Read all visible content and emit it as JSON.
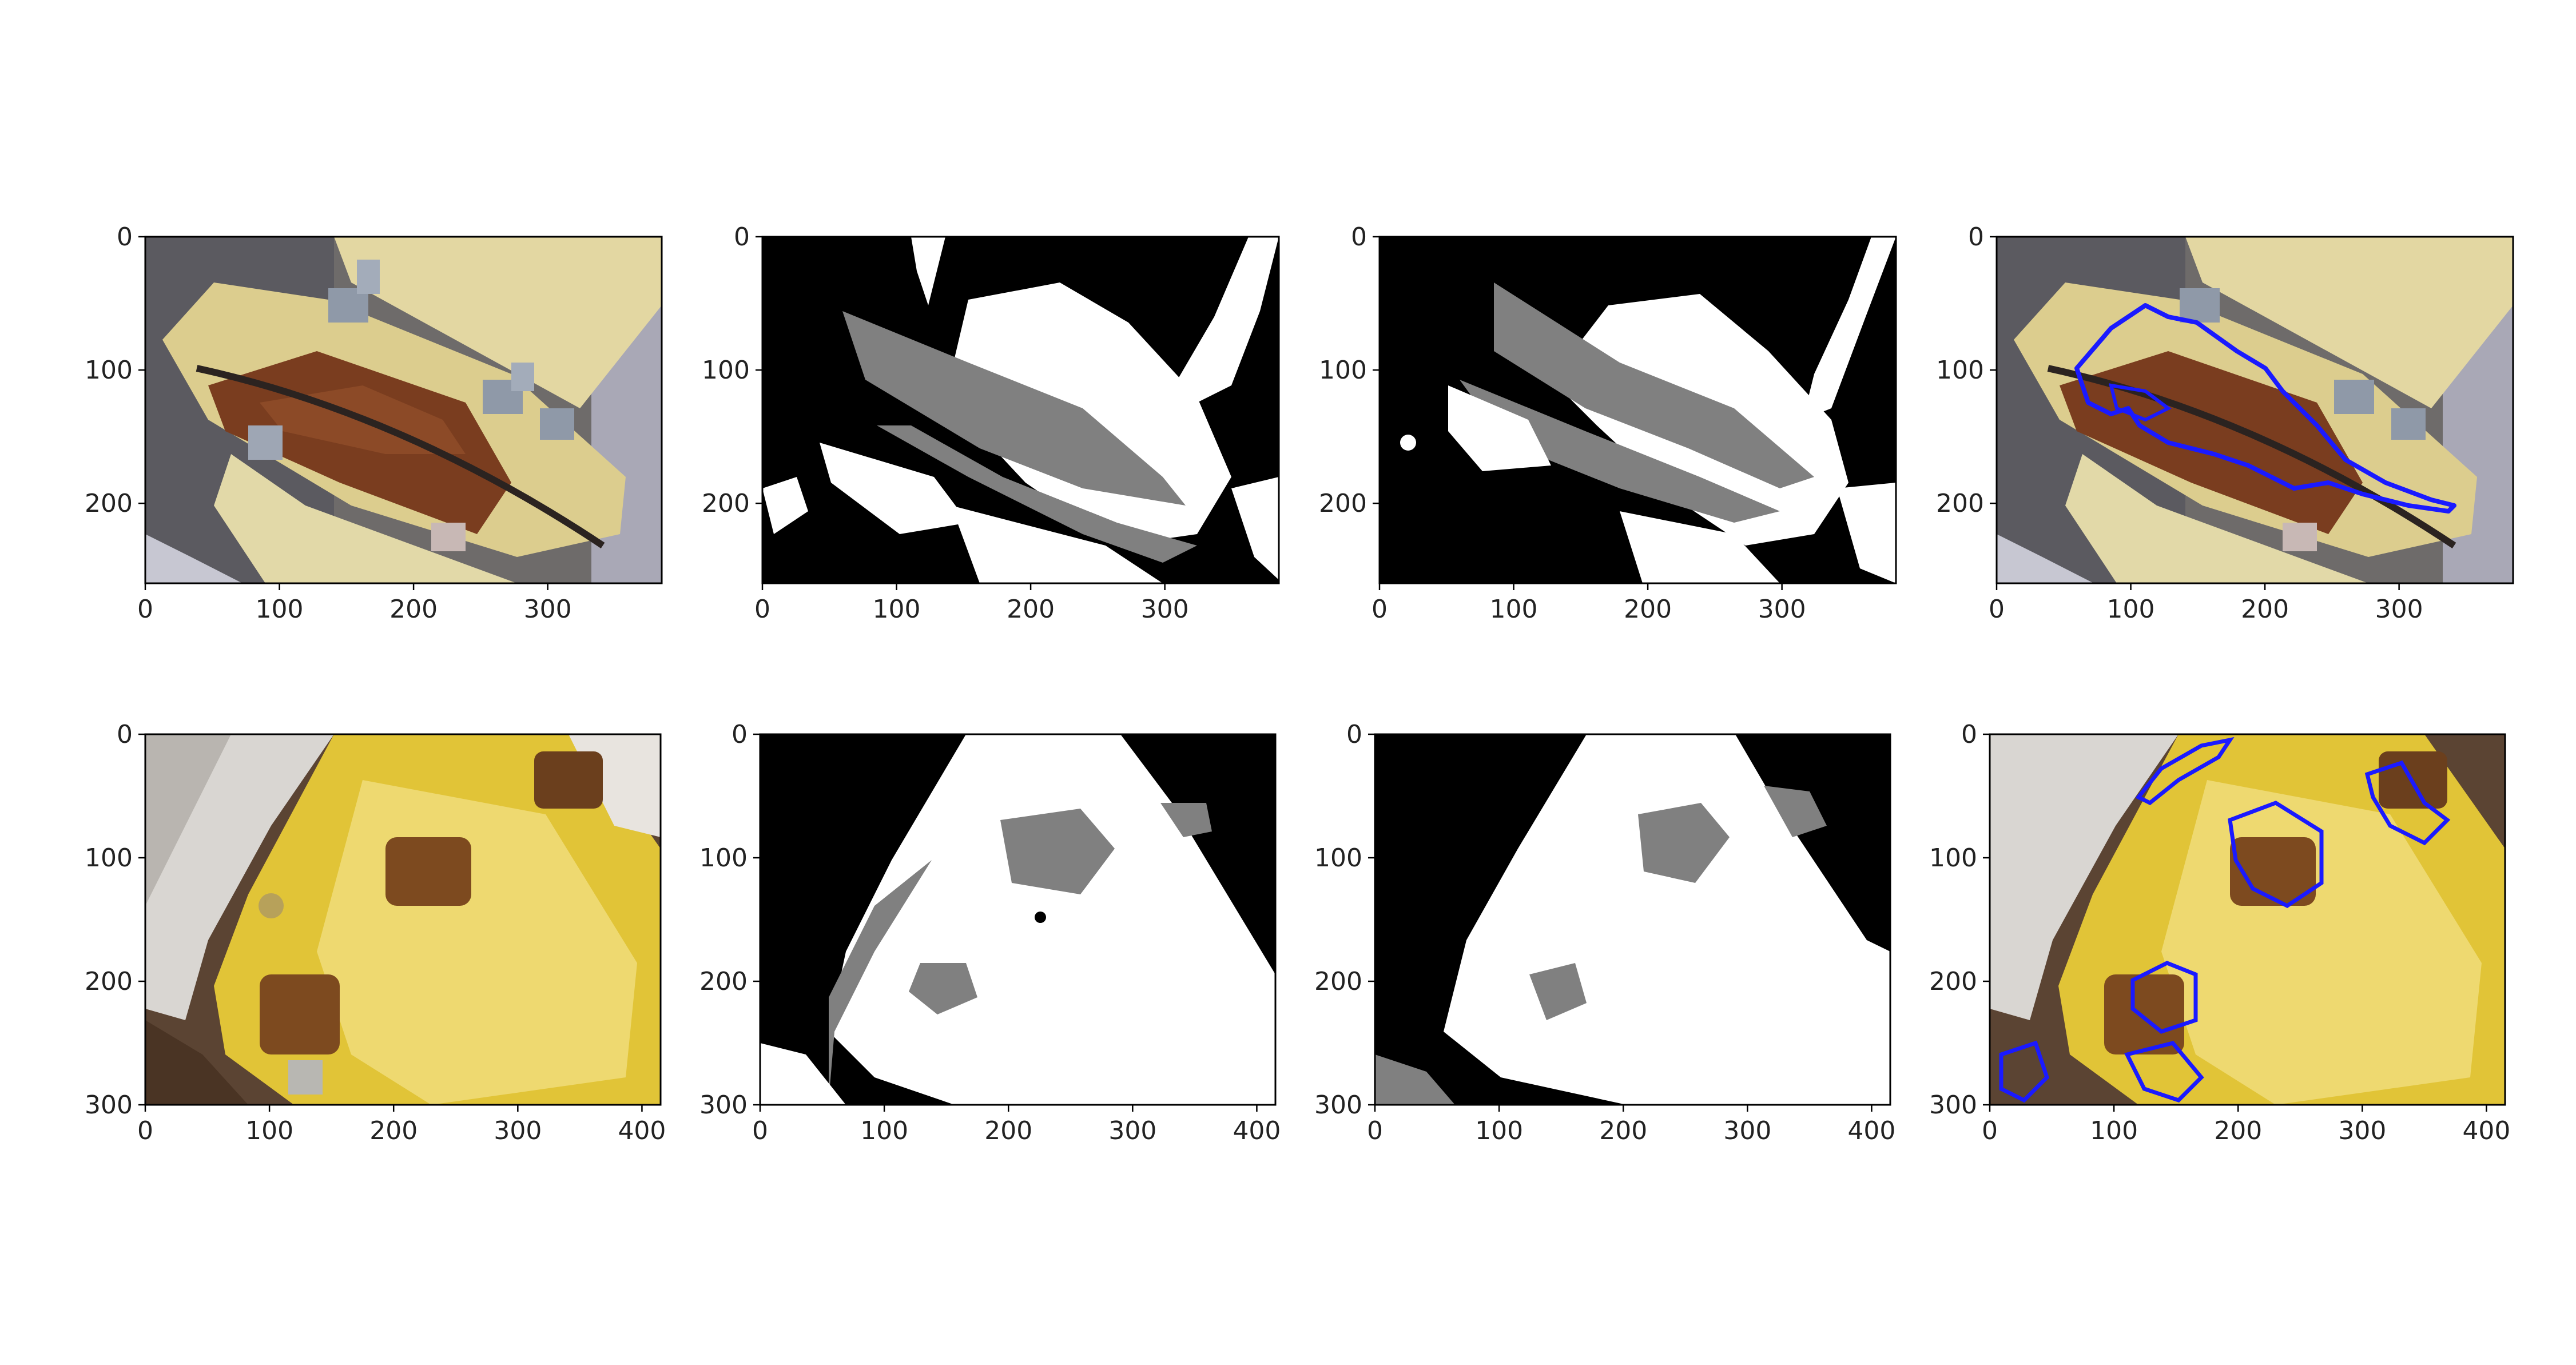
{
  "figure": {
    "background": "#ffffff",
    "tick_color": "#222222",
    "contour_color": "#1a1aff"
  },
  "rows": [
    {
      "xlim": [
        0,
        385
      ],
      "ylim": [
        260,
        0
      ],
      "x_ticks": [
        0,
        100,
        200,
        300
      ],
      "y_ticks": [
        0,
        100,
        200
      ],
      "panels": [
        {
          "kind": "photo",
          "subject": "rusted yellow hydrant flange with bolts",
          "base_color": "#d8c98a"
        },
        {
          "kind": "segmentation-mask",
          "levels": [
            "black",
            "gray",
            "white"
          ]
        },
        {
          "kind": "smoothed-mask",
          "levels": [
            "black",
            "gray",
            "white"
          ]
        },
        {
          "kind": "photo-with-contour",
          "subject": "rusted yellow hydrant flange with bolts",
          "contour": "blue"
        }
      ]
    },
    {
      "xlim": [
        0,
        415
      ],
      "ylim": [
        300,
        0
      ],
      "x_ticks": [
        0,
        100,
        200,
        300,
        400
      ],
      "y_ticks": [
        0,
        100,
        200,
        300
      ],
      "panels": [
        {
          "kind": "photo",
          "subject": "yellow hydrant cap with rusty nuts",
          "base_color": "#e2c63a"
        },
        {
          "kind": "segmentation-mask",
          "levels": [
            "black",
            "gray",
            "white"
          ]
        },
        {
          "kind": "smoothed-mask",
          "levels": [
            "black",
            "gray",
            "white"
          ]
        },
        {
          "kind": "photo-with-contour",
          "subject": "yellow hydrant cap with rusty nuts",
          "contour": "blue"
        }
      ]
    }
  ]
}
